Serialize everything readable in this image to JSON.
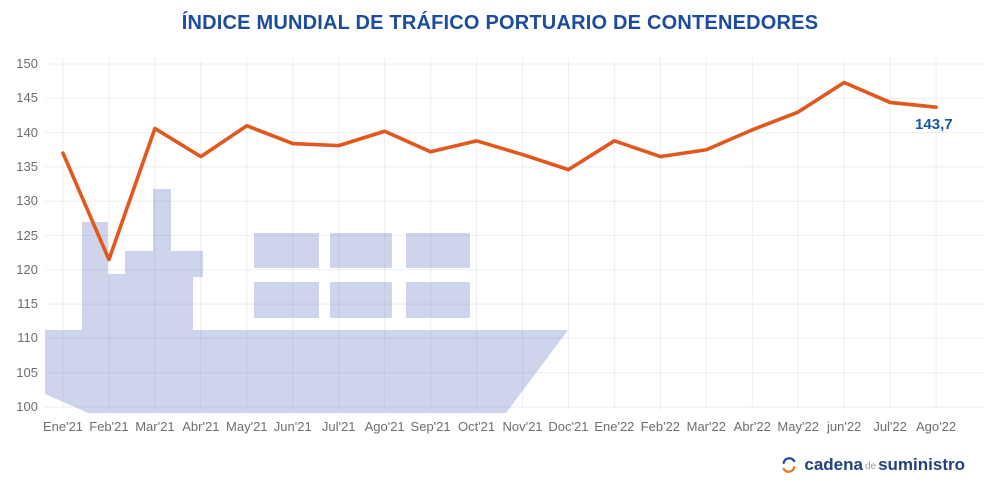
{
  "title": "ÍNDICE MUNDIAL DE TRÁFICO PORTUARIO DE CONTENEDORES",
  "chart_data": {
    "type": "line",
    "categories": [
      "Ene'21",
      "Feb'21",
      "Mar'21",
      "Abr'21",
      "May'21",
      "Jun'21",
      "Jul'21",
      "Ago'21",
      "Sep'21",
      "Oct'21",
      "Nov'21",
      "Doc'21",
      "Ene'22",
      "Feb'22",
      "Mar'22",
      "Abr'22",
      "May'22",
      "jun'22",
      "Jul'22",
      "Ago'22"
    ],
    "values": [
      137.0,
      121.5,
      140.6,
      136.5,
      141.0,
      138.4,
      138.1,
      140.2,
      137.2,
      138.8,
      136.8,
      134.6,
      138.8,
      136.5,
      137.5,
      140.4,
      143.0,
      147.3,
      144.4,
      143.7
    ],
    "series_name": "Índice mundial de tráfico portuario de contenedores",
    "ylim": [
      100,
      150
    ],
    "ytick_labels": [
      "150",
      "145",
      "140",
      "135",
      "130",
      "125",
      "120",
      "115",
      "110",
      "105",
      "100"
    ],
    "yticks": [
      150,
      145,
      140,
      135,
      130,
      125,
      120,
      115,
      110,
      105,
      100
    ],
    "grid": "both",
    "legend": "none",
    "line_color": "#e2571e",
    "last_value_label": "143,7",
    "annotation_color": "#1c56a5",
    "axis_label_color": "#6e6e6e",
    "title_color": "#1b4c9e"
  },
  "watermark": {
    "name": "container-ship",
    "color": "#cdd4ec"
  },
  "logo": {
    "part1": "cadena",
    "part2": "de",
    "part3": "suministro",
    "text_color": "#22417e",
    "icon_blue": "#2a4b9b",
    "icon_orange": "#e87722"
  }
}
